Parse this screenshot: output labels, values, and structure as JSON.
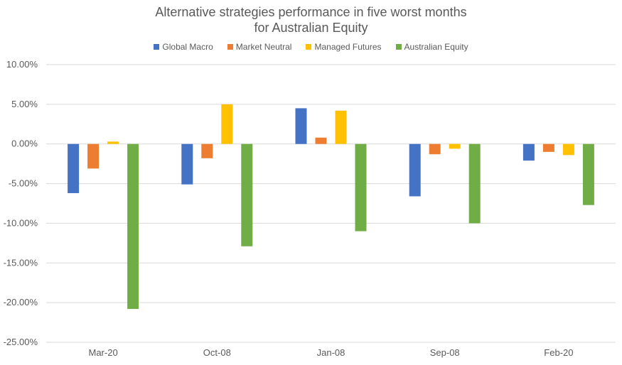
{
  "chart_data": {
    "type": "bar",
    "title": [
      "Alternative strategies performance in five worst months",
      "for Australian Equity"
    ],
    "categories": [
      "Mar-20",
      "Oct-08",
      "Jan-08",
      "Sep-08",
      "Feb-20"
    ],
    "series": [
      {
        "name": "Global Macro",
        "color": "#4472C4",
        "values": [
          -6.2,
          -5.1,
          4.5,
          -6.6,
          -2.1
        ]
      },
      {
        "name": "Market Neutral",
        "color": "#ED7D31",
        "values": [
          -3.1,
          -1.8,
          0.8,
          -1.3,
          -1.0
        ]
      },
      {
        "name": "Managed Futures",
        "color": "#FFC000",
        "values": [
          0.3,
          5.0,
          4.2,
          -0.6,
          -1.4
        ]
      },
      {
        "name": "Australian Equity",
        "color": "#70AD47",
        "values": [
          -20.8,
          -12.9,
          -11.0,
          -10.0,
          -7.7
        ]
      }
    ],
    "ylim": [
      -25,
      10
    ],
    "yticks": [
      10,
      5,
      0,
      -5,
      -10,
      -15,
      -20,
      -25
    ],
    "ytick_labels": [
      "10.00%",
      "5.00%",
      "0.00%",
      "-5.00%",
      "-10.00%",
      "-15.00%",
      "-20.00%",
      "-25.00%"
    ],
    "legend_position": "top-center",
    "grid": true,
    "xlabel": "",
    "ylabel": ""
  }
}
